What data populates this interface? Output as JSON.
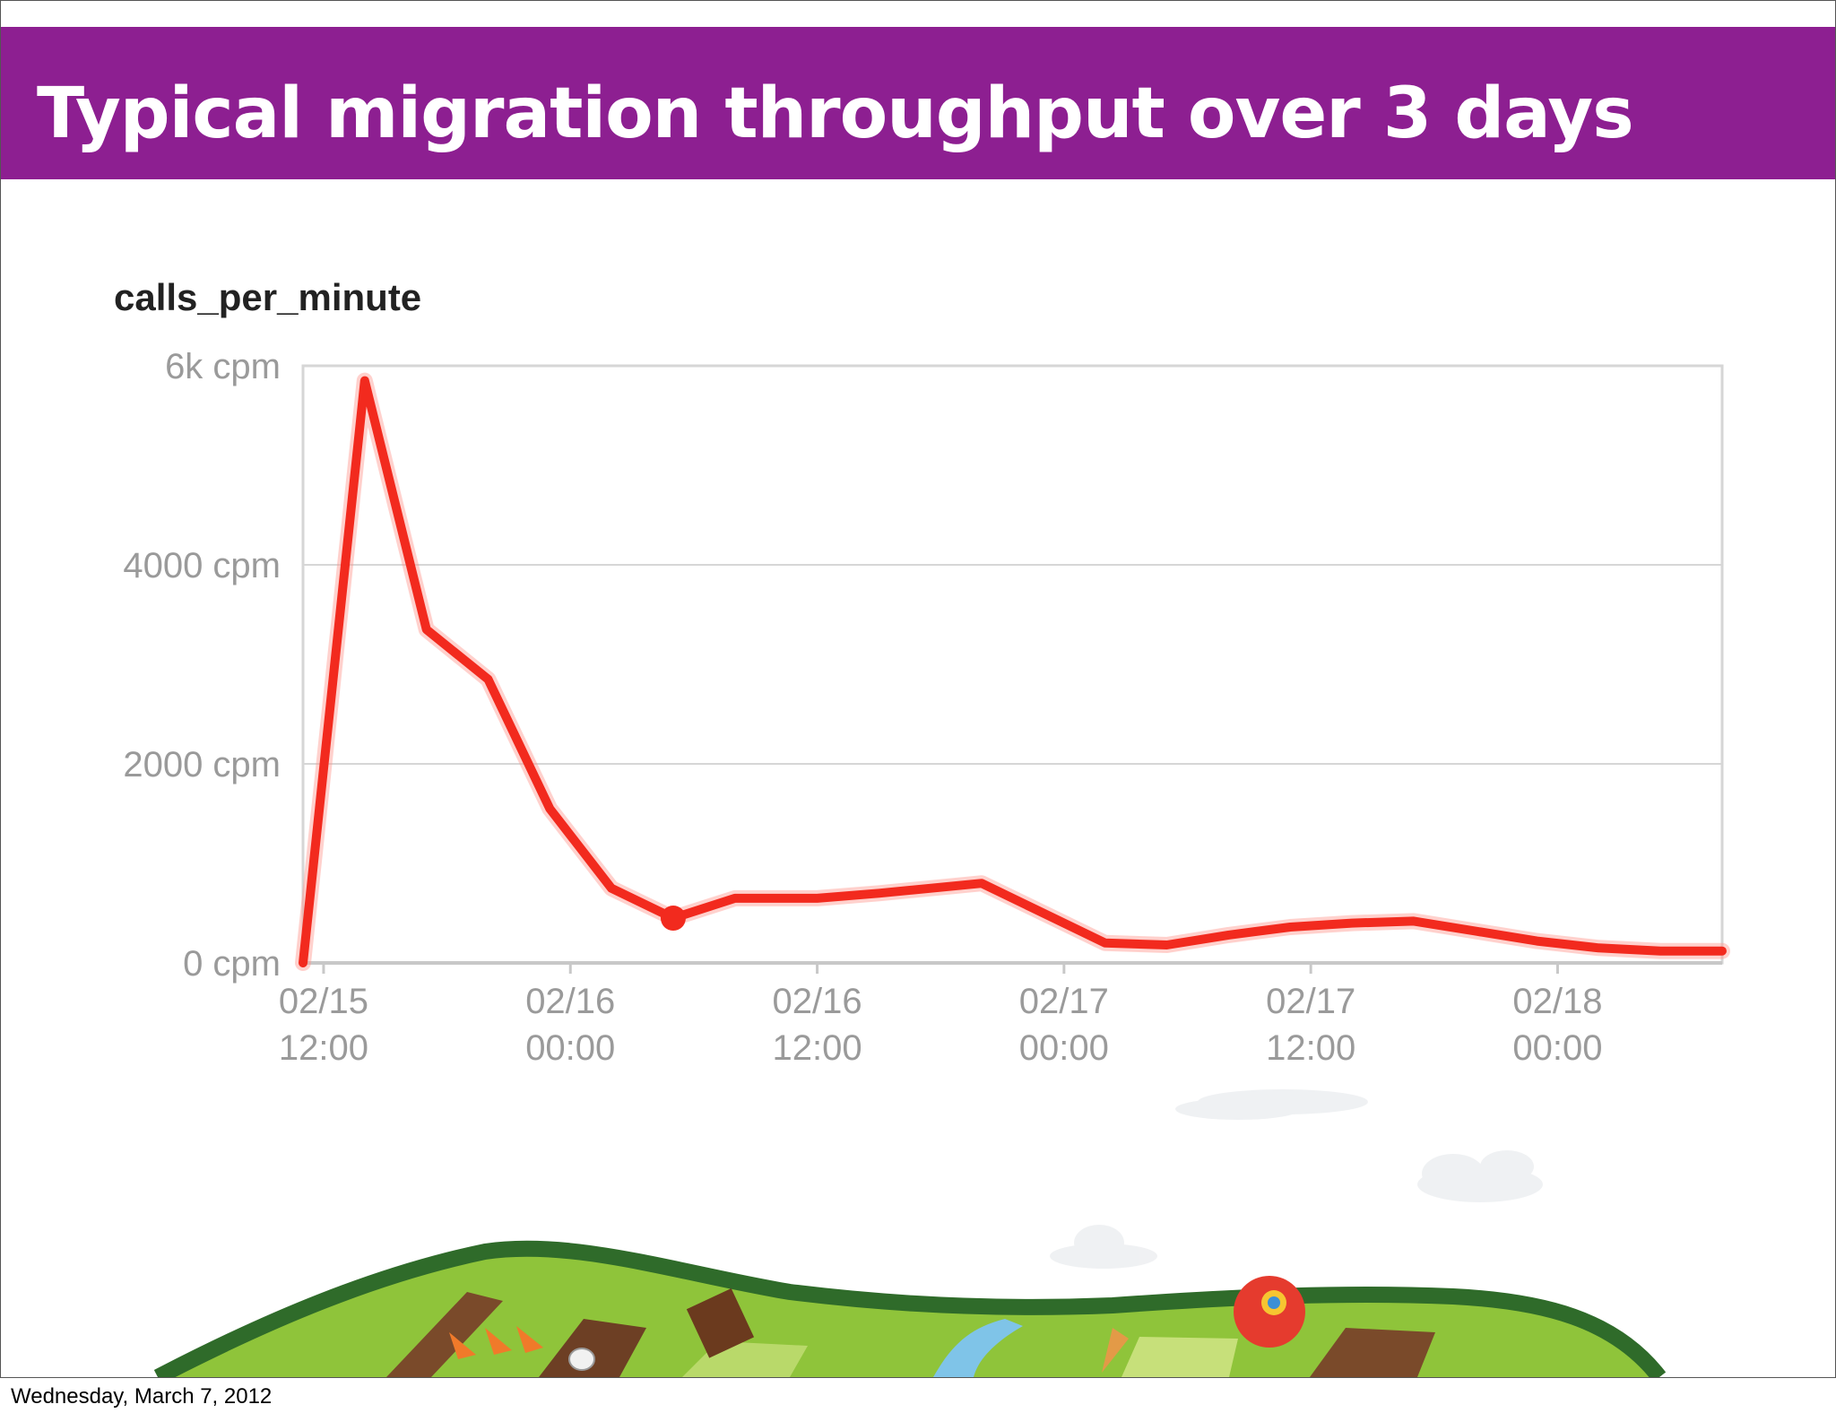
{
  "slide": {
    "title": "Typical migration throughput over 3 days",
    "footer_date": "Wednesday, March 7, 2012"
  },
  "colors": {
    "title_bar": "#8d1f91",
    "series_line": "#f22a1e",
    "grid": "#d6d6d6",
    "tick_text": "#9a9a9a"
  },
  "chart_data": {
    "type": "line",
    "title": "calls_per_minute",
    "xlabel": "",
    "ylabel": "",
    "y_ticks": [
      {
        "value": 0,
        "label": "0 cpm"
      },
      {
        "value": 2000,
        "label": "2000 cpm"
      },
      {
        "value": 4000,
        "label": "4000 cpm"
      },
      {
        "value": 6000,
        "label": "6k cpm"
      }
    ],
    "x_ticks": [
      {
        "hours": 0,
        "date": "02/15",
        "time": "12:00"
      },
      {
        "hours": 12,
        "date": "02/16",
        "time": "00:00"
      },
      {
        "hours": 24,
        "date": "02/16",
        "time": "12:00"
      },
      {
        "hours": 36,
        "date": "02/17",
        "time": "00:00"
      },
      {
        "hours": 48,
        "date": "02/17",
        "time": "12:00"
      },
      {
        "hours": 60,
        "date": "02/18",
        "time": "00:00"
      }
    ],
    "xlim": [
      -1,
      68
    ],
    "ylim": [
      0,
      6000
    ],
    "grid": true,
    "legend": "none",
    "series": [
      {
        "x": [
          -1,
          2,
          5,
          8,
          11,
          14,
          17,
          20,
          24,
          27,
          32,
          38,
          41,
          44,
          47,
          50,
          53,
          56,
          59,
          62,
          65,
          68
        ],
        "y": [
          0,
          5850,
          3350,
          2850,
          1550,
          750,
          450,
          650,
          650,
          700,
          800,
          200,
          180,
          280,
          360,
          400,
          420,
          320,
          220,
          150,
          120,
          120
        ]
      }
    ],
    "highlight_point": {
      "x": 17,
      "y": 450
    }
  }
}
